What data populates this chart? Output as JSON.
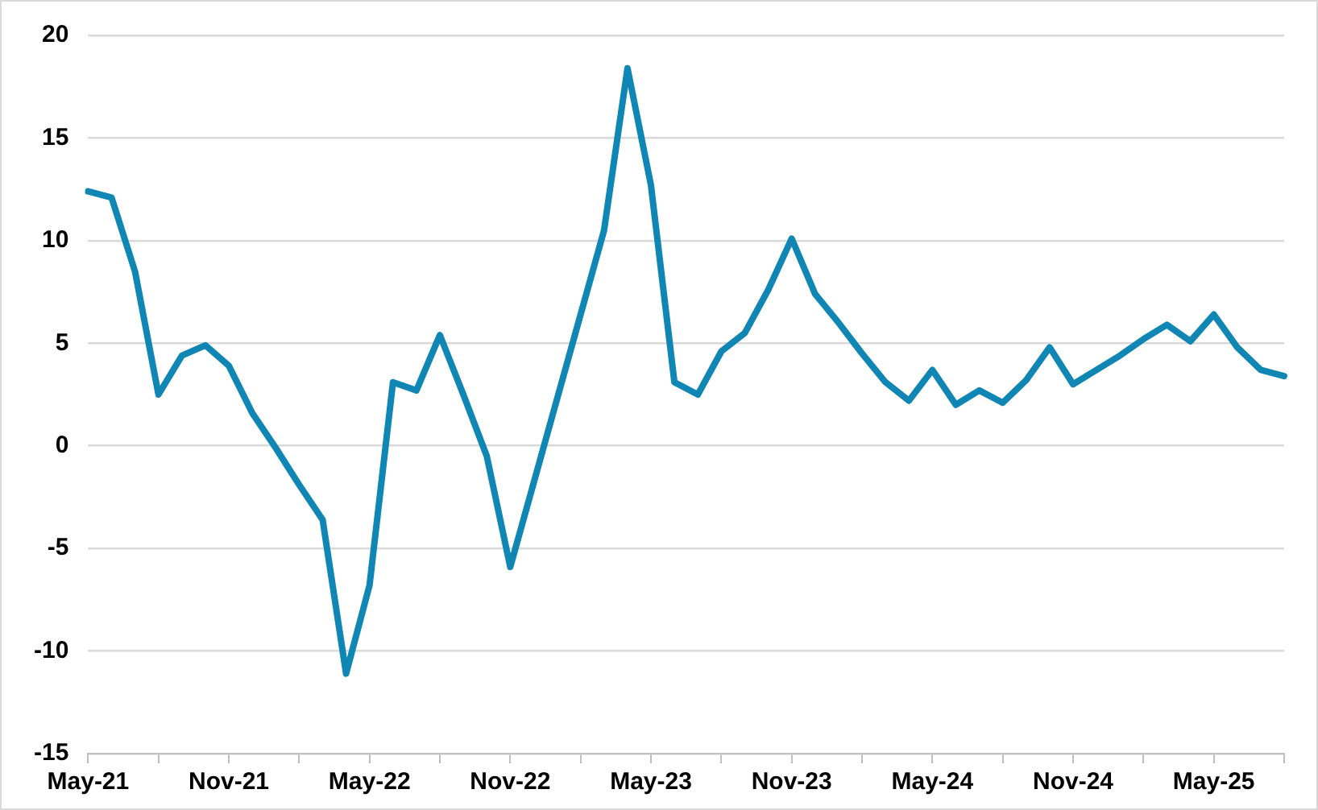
{
  "chart_data": {
    "type": "line",
    "categories": [
      "May-21",
      null,
      null,
      null,
      null,
      null,
      "Nov-21",
      null,
      null,
      null,
      null,
      null,
      "May-22",
      null,
      null,
      null,
      null,
      null,
      "Nov-22",
      null,
      null,
      null,
      null,
      null,
      "May-23",
      null,
      null,
      null,
      null,
      null,
      "Nov-23",
      null,
      null,
      null,
      null,
      null,
      "May-24",
      null,
      null,
      null,
      null,
      null,
      "Nov-24",
      null,
      null,
      null,
      null,
      null,
      "May-25",
      null,
      null,
      null
    ],
    "series": [
      {
        "color": "#0f86b4",
        "values": [
          12.4,
          12.1,
          8.5,
          2.5,
          4.4,
          4.9,
          3.9,
          1.6,
          -0.1,
          -1.9,
          -3.6,
          -11.1,
          -6.8,
          3.1,
          2.7,
          5.4,
          2.5,
          -0.5,
          -5.9,
          -1.8,
          2.3,
          6.4,
          10.5,
          18.4,
          12.7,
          3.1,
          2.5,
          4.6,
          5.5,
          7.6,
          10.1,
          7.4,
          6.0,
          4.5,
          3.1,
          2.2,
          3.7,
          2.0,
          2.7,
          2.1,
          3.2,
          4.8,
          3.0,
          3.7,
          4.4,
          5.2,
          5.9,
          5.1,
          6.4,
          4.8,
          3.7,
          3.4
        ]
      }
    ],
    "ylim": [
      -15,
      20
    ],
    "yticks": [
      -15,
      -10,
      -5,
      0,
      5,
      10,
      15,
      20
    ],
    "grid": "y",
    "legend": false,
    "marker": "none",
    "line_style": "solid"
  }
}
